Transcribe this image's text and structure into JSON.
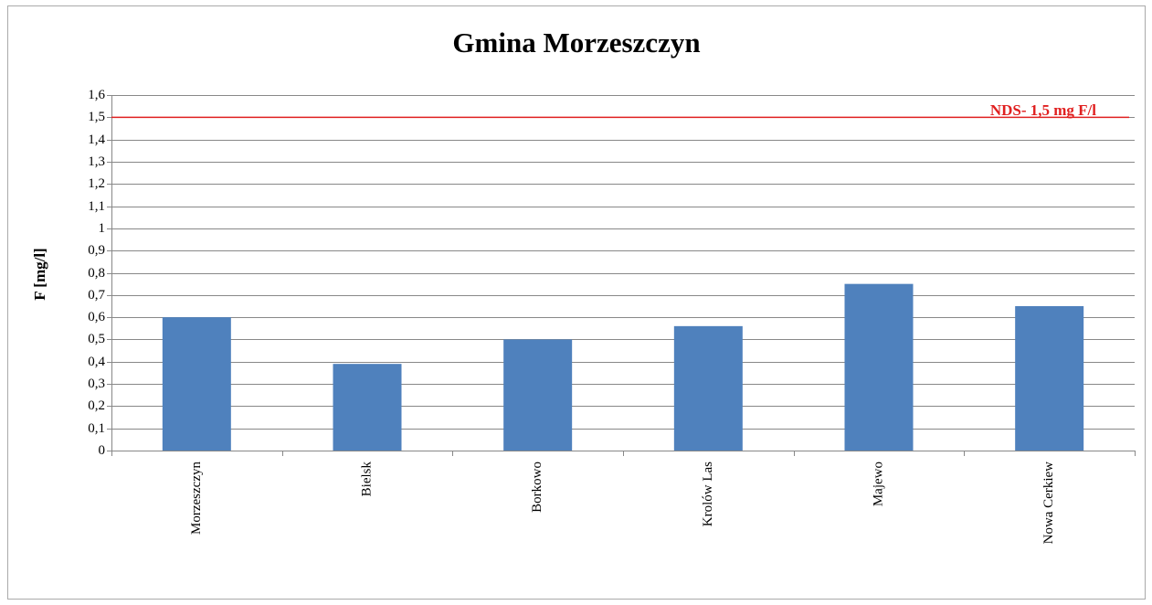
{
  "chart_data": {
    "type": "bar",
    "title": "Gmina Morzeszczyn",
    "y_label": "F [mg/l]",
    "categories": [
      "Morzeszczyn",
      "Bielsk",
      "Borkowo",
      "Krolów Las",
      "Majewo",
      "Nowa Cerkiew"
    ],
    "values": [
      0.6,
      0.39,
      0.5,
      0.56,
      0.75,
      0.65
    ],
    "color": "#4f81bd",
    "ylim": [
      0,
      1.6
    ],
    "yticks": [
      0,
      {
        "value": 0.1,
        "label": "0,1"
      },
      {
        "value": 0.2,
        "label": "0,2"
      },
      {
        "value": 0.3,
        "label": "0,3"
      },
      {
        "value": 0.4,
        "label": "0,4"
      },
      {
        "value": 0.5,
        "label": "0,5"
      },
      {
        "value": 0.6,
        "label": "0,6"
      },
      {
        "value": 0.7,
        "label": "0,7"
      },
      {
        "value": 0.8,
        "label": "0,8"
      },
      {
        "value": 0.9,
        "label": "0,9"
      },
      1,
      {
        "value": 1.1,
        "label": "1,1"
      },
      {
        "value": 1.2,
        "label": "1,2"
      },
      {
        "value": 1.3,
        "label": "1,3"
      },
      {
        "value": 1.4,
        "label": "1,4"
      },
      {
        "value": 1.5,
        "label": "1,5"
      },
      {
        "value": 1.6,
        "label": "1,6"
      }
    ],
    "grid": true,
    "reference_line": {
      "value": 1.5,
      "label": "NDS- 1,5 mg F/l",
      "color": "#e02020"
    }
  }
}
